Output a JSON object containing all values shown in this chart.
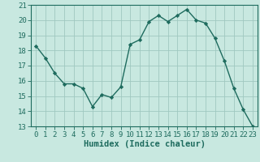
{
  "x": [
    0,
    1,
    2,
    3,
    4,
    5,
    6,
    7,
    8,
    9,
    10,
    11,
    12,
    13,
    14,
    15,
    16,
    17,
    18,
    19,
    20,
    21,
    22,
    23
  ],
  "y": [
    18.3,
    17.5,
    16.5,
    15.8,
    15.8,
    15.5,
    14.3,
    15.1,
    14.9,
    15.6,
    18.4,
    18.7,
    19.9,
    20.3,
    19.9,
    20.3,
    20.7,
    20.0,
    19.8,
    18.8,
    17.3,
    15.5,
    14.1,
    13.0
  ],
  "line_color": "#1e6b5e",
  "marker": "D",
  "marker_size": 2.2,
  "bg_color": "#c8e8e0",
  "grid_color": "#a0c8c0",
  "xlabel": "Humidex (Indice chaleur)",
  "ylim": [
    13,
    21
  ],
  "xlim": [
    -0.5,
    23.5
  ],
  "yticks": [
    13,
    14,
    15,
    16,
    17,
    18,
    19,
    20,
    21
  ],
  "xticks": [
    0,
    1,
    2,
    3,
    4,
    5,
    6,
    7,
    8,
    9,
    10,
    11,
    12,
    13,
    14,
    15,
    16,
    17,
    18,
    19,
    20,
    21,
    22,
    23
  ],
  "tick_fontsize": 6.5,
  "xlabel_fontsize": 7.5,
  "line_width": 1.0
}
